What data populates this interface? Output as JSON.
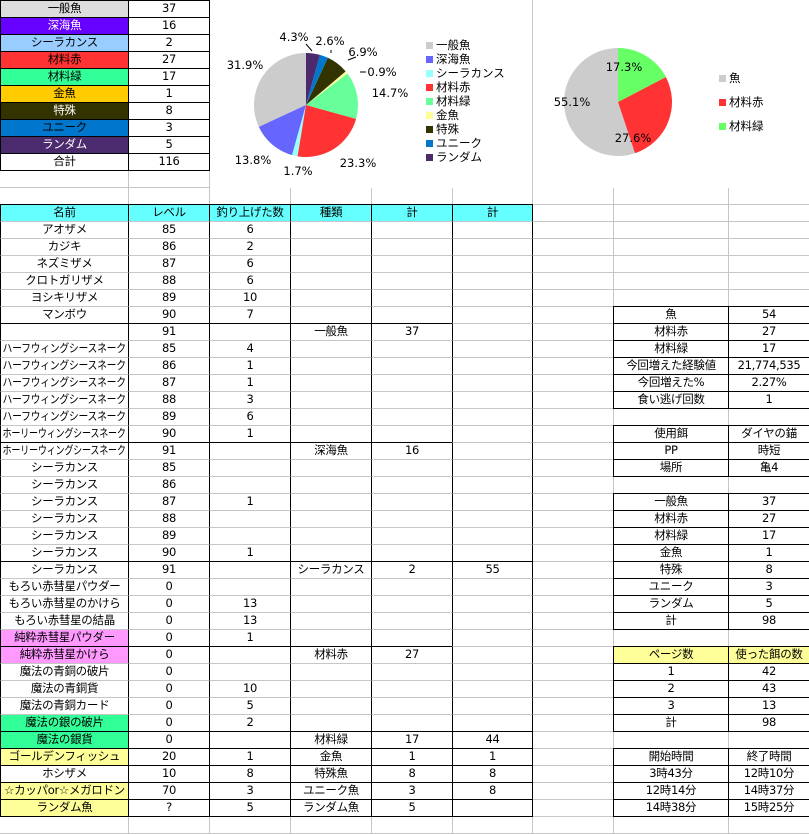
{
  "summary": {
    "items": [
      {
        "label": "一般魚",
        "value": "37",
        "bg": "#dddddd",
        "fg": "#000000"
      },
      {
        "label": "深海魚",
        "value": "16",
        "bg": "#6600ff",
        "fg": "#ffffff"
      },
      {
        "label": "シーラカンス",
        "value": "2",
        "bg": "#99ccff",
        "fg": "#000000"
      },
      {
        "label": "材料赤",
        "value": "27",
        "bg": "#ff3333",
        "fg": "#000000"
      },
      {
        "label": "材料緑",
        "value": "17",
        "bg": "#33ff99",
        "fg": "#000000"
      },
      {
        "label": "金魚",
        "value": "1",
        "bg": "#ffcc00",
        "fg": "#000000"
      },
      {
        "label": "特殊",
        "value": "8",
        "bg": "#333300",
        "fg": "#ffffff"
      },
      {
        "label": "ユニーク",
        "value": "3",
        "bg": "#0077cc",
        "fg": "#000000"
      },
      {
        "label": "ランダム",
        "value": "5",
        "bg": "#4b2a6e",
        "fg": "#ffffff"
      },
      {
        "label": "合計",
        "value": "116",
        "bg": "#ffffff",
        "fg": "#000000"
      }
    ]
  },
  "main": {
    "header_bg": "#66ffff",
    "headers": [
      "名前",
      "レベル",
      "釣り上げた数",
      "種類",
      "計",
      "計"
    ],
    "rows": [
      [
        "アオザメ",
        "85",
        "6",
        "",
        "",
        ""
      ],
      [
        "カジキ",
        "86",
        "2",
        "",
        "",
        ""
      ],
      [
        "ネズミザメ",
        "87",
        "6",
        "",
        "",
        ""
      ],
      [
        "クロトガリザメ",
        "88",
        "6",
        "",
        "",
        ""
      ],
      [
        "ヨシキリザメ",
        "89",
        "10",
        "",
        "",
        ""
      ],
      [
        "マンボウ",
        "90",
        "7",
        "",
        "",
        ""
      ],
      [
        "",
        "91",
        "",
        "一般魚",
        "37",
        ""
      ],
      [
        "ハーフウィングシースネーク",
        "85",
        "4",
        "",
        "",
        ""
      ],
      [
        "ハーフウィングシースネーク",
        "86",
        "1",
        "",
        "",
        ""
      ],
      [
        "ハーフウィングシースネーク",
        "87",
        "1",
        "",
        "",
        ""
      ],
      [
        "ハーフウィングシースネーク",
        "88",
        "3",
        "",
        "",
        ""
      ],
      [
        "ハーフウィングシースネーク",
        "89",
        "6",
        "",
        "",
        ""
      ],
      [
        "ホーリーウィングシースネーク",
        "90",
        "1",
        "",
        "",
        ""
      ],
      [
        "ホーリーウィングシースネーク",
        "91",
        "",
        "深海魚",
        "16",
        ""
      ],
      [
        "シーラカンス",
        "85",
        "",
        "",
        "",
        ""
      ],
      [
        "シーラカンス",
        "86",
        "",
        "",
        "",
        ""
      ],
      [
        "シーラカンス",
        "87",
        "1",
        "",
        "",
        ""
      ],
      [
        "シーラカンス",
        "88",
        "",
        "",
        "",
        ""
      ],
      [
        "シーラカンス",
        "89",
        "",
        "",
        "",
        ""
      ],
      [
        "シーラカンス",
        "90",
        "1",
        "",
        "",
        ""
      ],
      [
        "シーラカンス",
        "91",
        "",
        "シーラカンス",
        "2",
        "55"
      ],
      [
        "もろい赤彗星パウダー",
        "0",
        "",
        "",
        "",
        ""
      ],
      [
        "もろい赤彗星のかけら",
        "0",
        "13",
        "",
        "",
        ""
      ],
      [
        "もろい赤彗星の結晶",
        "0",
        "13",
        "",
        "",
        ""
      ],
      [
        "純粋赤彗星パウダー",
        "0",
        "1",
        "",
        "",
        ""
      ],
      [
        "純粋赤彗星かけら",
        "0",
        "",
        "材料赤",
        "27",
        ""
      ],
      [
        "魔法の青銅の破片",
        "0",
        "",
        "",
        "",
        ""
      ],
      [
        "魔法の青銅貨",
        "0",
        "10",
        "",
        "",
        ""
      ],
      [
        "魔法の青銅カード",
        "0",
        "5",
        "",
        "",
        ""
      ],
      [
        "魔法の銀の破片",
        "0",
        "2",
        "",
        "",
        ""
      ],
      [
        "魔法の銀貨",
        "0",
        "",
        "材料緑",
        "17",
        "44"
      ],
      [
        "ゴールデンフィッシュ",
        "20",
        "1",
        "金魚",
        "1",
        "1"
      ],
      [
        "ホシザメ",
        "10",
        "8",
        "特殊魚",
        "8",
        "8"
      ],
      [
        "☆カッパor☆メガロドン",
        "70",
        "3",
        "ユニーク魚",
        "3",
        "8"
      ],
      [
        "ランダム魚",
        "?",
        "5",
        "ランダム魚",
        "5",
        ""
      ]
    ],
    "name_highlights": {
      "pink": "#ff99ff",
      "green": "#33ff99",
      "yellow": "#ffff99"
    }
  },
  "panels": {
    "stats": [
      [
        "魚",
        "54"
      ],
      [
        "材料赤",
        "27"
      ],
      [
        "材料緑",
        "17"
      ],
      [
        "今回増えた経験値",
        "21,774,535"
      ],
      [
        "今回増えた%",
        "2.27%"
      ],
      [
        "食い逃げ回数",
        "1"
      ]
    ],
    "bait": [
      [
        "使用餌",
        "ダイヤの錨"
      ],
      [
        "PP",
        "時短"
      ],
      [
        "場所",
        "亀4"
      ]
    ],
    "breakdown": [
      [
        "一般魚",
        "37"
      ],
      [
        "材料赤",
        "27"
      ],
      [
        "材料緑",
        "17"
      ],
      [
        "金魚",
        "1"
      ],
      [
        "特殊",
        "8"
      ],
      [
        "ユニーク",
        "3"
      ],
      [
        "ランダム",
        "5"
      ],
      [
        "計",
        "98"
      ]
    ],
    "pages": [
      [
        "ページ数",
        "使った餌の数"
      ],
      [
        "1",
        "42"
      ],
      [
        "2",
        "43"
      ],
      [
        "3",
        "13"
      ],
      [
        "計",
        "98"
      ]
    ],
    "pages_header_bg": "#ffff99",
    "times": [
      [
        "開始時間",
        "終了時間"
      ],
      [
        "3時43分",
        "12時10分"
      ],
      [
        "12時14分",
        "14時37分"
      ],
      [
        "14時38分",
        "15時25分"
      ]
    ]
  },
  "chart_data": [
    {
      "type": "pie",
      "categories": [
        "一般魚",
        "深海魚",
        "シーラカンス",
        "材料赤",
        "材料緑",
        "金魚",
        "特殊",
        "ユニーク",
        "ランダム"
      ],
      "values": [
        37,
        16,
        2,
        27,
        17,
        1,
        8,
        3,
        5
      ],
      "labels": [
        "31.9%",
        "13.8%",
        "1.7%",
        "23.3%",
        "14.7%",
        "0.9%",
        "6.9%",
        "2.6%",
        "4.3%"
      ],
      "colors": [
        "#cccccc",
        "#6666ff",
        "#99ffff",
        "#ff3333",
        "#66ff99",
        "#ffff99",
        "#333300",
        "#0077cc",
        "#4b2a6e"
      ],
      "legend": "right",
      "direction": "counterclockwise-from-top"
    },
    {
      "type": "pie",
      "categories": [
        "魚",
        "材料赤",
        "材料緑"
      ],
      "values": [
        54,
        27,
        17
      ],
      "labels": [
        "55.1%",
        "27.6%",
        "17.3%"
      ],
      "colors": [
        "#cccccc",
        "#ff3333",
        "#66ff66"
      ],
      "legend": "right",
      "direction": "counterclockwise-from-top"
    }
  ]
}
